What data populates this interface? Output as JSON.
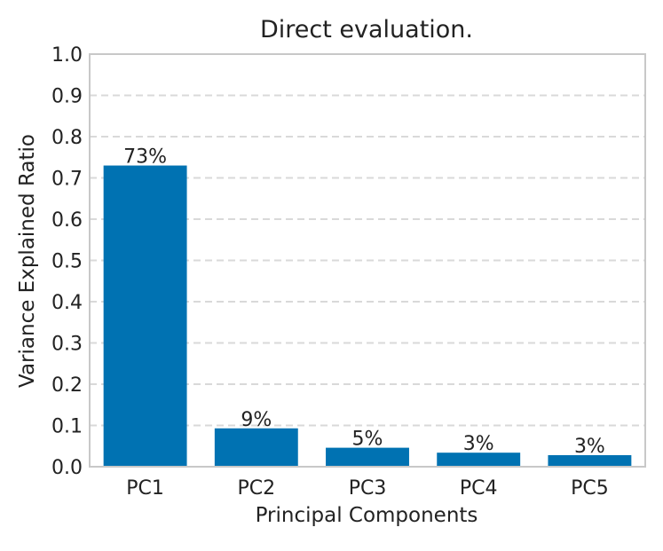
{
  "chart_data": {
    "type": "bar",
    "title": "Direct evaluation.",
    "xlabel": "Principal Components",
    "ylabel": "Variance Explained Ratio",
    "categories": [
      "PC1",
      "PC2",
      "PC3",
      "PC4",
      "PC5"
    ],
    "values": [
      0.73,
      0.093,
      0.046,
      0.034,
      0.028
    ],
    "data_labels": [
      "73%",
      "9%",
      "5%",
      "3%",
      "3%"
    ],
    "ylim": [
      0,
      1.0
    ],
    "yticks": [
      "0.0",
      "0.1",
      "0.2",
      "0.3",
      "0.4",
      "0.5",
      "0.6",
      "0.7",
      "0.8",
      "0.9",
      "1.0"
    ],
    "grid": "horizontal dashed",
    "bar_color": "#0072b2",
    "grid_color": "#d9d9d9",
    "frame_color": "#c8c8c8"
  }
}
